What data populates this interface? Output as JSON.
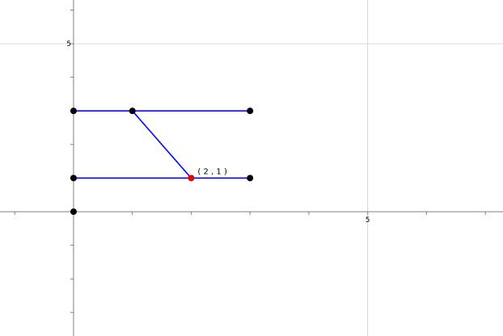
{
  "view": {
    "x_range": [
      -1.25,
      7.3
    ],
    "y_range": [
      -3.7,
      6.3
    ],
    "grid_major_step": 5,
    "minor_tick_step": 1,
    "tick_labels": {
      "x": "5",
      "y": "5"
    }
  },
  "colors": {
    "grid": "#d8d8d8",
    "axis": "#808080",
    "segment": "#0000ff",
    "point": "#000000",
    "highlight_point": "#e00000",
    "background": "#ffffff"
  },
  "segments": [
    {
      "from": [
        0,
        3
      ],
      "to": [
        3,
        3
      ]
    },
    {
      "from": [
        0,
        1
      ],
      "to": [
        3,
        1
      ]
    },
    {
      "from": [
        1,
        3
      ],
      "to": [
        2,
        1
      ]
    }
  ],
  "points": [
    {
      "x": 0,
      "y": 3
    },
    {
      "x": 1,
      "y": 3
    },
    {
      "x": 3,
      "y": 3
    },
    {
      "x": 0,
      "y": 1
    },
    {
      "x": 3,
      "y": 1
    },
    {
      "x": 0,
      "y": 0
    },
    {
      "x": 2,
      "y": 1,
      "highlight": true,
      "label": "( 2 , 1 )"
    }
  ]
}
